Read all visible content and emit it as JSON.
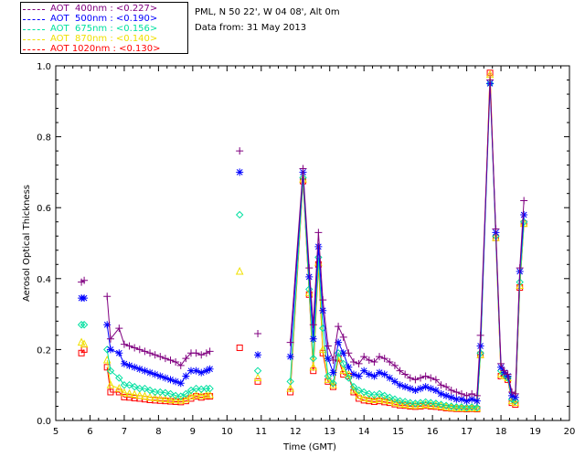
{
  "header": {
    "station": "PML, N 50 22', W 04 08', Alt 0m",
    "date": "Data from: 31 May 2013"
  },
  "chart_data": {
    "type": "scatter",
    "xlabel": "Time (GMT)",
    "ylabel": "Aerosol Optical Thickness",
    "xlim": [
      5,
      20
    ],
    "ylim": [
      0.0,
      1.0
    ],
    "xticks": [
      "5",
      "6",
      "7",
      "8",
      "9",
      "10",
      "11",
      "12",
      "13",
      "14",
      "15",
      "16",
      "17",
      "18",
      "19",
      "20"
    ],
    "yticks": [
      "0.0",
      "0.2",
      "0.4",
      "0.6",
      "0.8",
      "1.0"
    ],
    "legend_position": "top-left",
    "x": [
      5.75,
      5.83,
      6.5,
      6.6,
      6.85,
      7.0,
      7.15,
      7.3,
      7.45,
      7.6,
      7.75,
      7.9,
      8.05,
      8.2,
      8.35,
      8.5,
      8.65,
      8.8,
      8.95,
      9.1,
      9.25,
      9.4,
      9.5,
      10.37,
      10.9,
      11.85,
      12.22,
      12.4,
      12.52,
      12.67,
      12.8,
      12.95,
      13.1,
      13.25,
      13.4,
      13.55,
      13.7,
      13.85,
      14.0,
      14.15,
      14.3,
      14.45,
      14.6,
      14.75,
      14.9,
      15.05,
      15.2,
      15.35,
      15.5,
      15.65,
      15.8,
      15.95,
      16.1,
      16.25,
      16.4,
      16.55,
      16.7,
      16.85,
      17.0,
      17.15,
      17.3,
      17.4,
      17.68,
      17.85,
      18.0,
      18.1,
      18.2,
      18.32,
      18.42,
      18.55,
      18.67
    ],
    "series": [
      {
        "name": "AOT  400nm : <0.227>",
        "color": "#800080",
        "marker": "plus",
        "values": [
          0.39,
          0.395,
          0.35,
          0.23,
          0.26,
          0.215,
          0.21,
          0.205,
          0.2,
          0.195,
          0.19,
          0.185,
          0.18,
          0.175,
          0.17,
          0.165,
          0.155,
          0.175,
          0.19,
          0.19,
          0.185,
          0.19,
          0.195,
          0.76,
          0.245,
          0.22,
          0.71,
          0.43,
          0.27,
          0.53,
          0.34,
          0.21,
          0.17,
          0.265,
          0.235,
          0.19,
          0.165,
          0.16,
          0.18,
          0.17,
          0.165,
          0.18,
          0.175,
          0.165,
          0.155,
          0.14,
          0.13,
          0.12,
          0.115,
          0.12,
          0.125,
          0.12,
          0.115,
          0.1,
          0.095,
          0.085,
          0.08,
          0.075,
          0.07,
          0.075,
          0.07,
          0.24,
          0.96,
          0.54,
          0.16,
          0.14,
          0.13,
          0.08,
          0.075,
          0.43,
          0.62
        ]
      },
      {
        "name": "AOT  500nm : <0.190>",
        "color": "#0000ff",
        "marker": "asterisk",
        "values": [
          0.345,
          0.345,
          0.27,
          0.2,
          0.19,
          0.16,
          0.155,
          0.15,
          0.145,
          0.14,
          0.135,
          0.13,
          0.125,
          0.12,
          0.115,
          0.11,
          0.105,
          0.125,
          0.14,
          0.14,
          0.135,
          0.14,
          0.145,
          0.7,
          0.185,
          0.18,
          0.7,
          0.405,
          0.23,
          0.49,
          0.31,
          0.175,
          0.135,
          0.22,
          0.19,
          0.15,
          0.13,
          0.125,
          0.14,
          0.13,
          0.125,
          0.135,
          0.13,
          0.12,
          0.11,
          0.1,
          0.095,
          0.09,
          0.085,
          0.09,
          0.095,
          0.09,
          0.085,
          0.075,
          0.07,
          0.065,
          0.06,
          0.06,
          0.055,
          0.06,
          0.055,
          0.21,
          0.95,
          0.53,
          0.15,
          0.135,
          0.125,
          0.07,
          0.065,
          0.42,
          0.58
        ]
      },
      {
        "name": "AOT  675nm : <0.156>",
        "color": "#00e0a0",
        "marker": "diamond",
        "values": [
          0.27,
          0.27,
          0.2,
          0.14,
          0.12,
          0.1,
          0.1,
          0.095,
          0.09,
          0.09,
          0.085,
          0.08,
          0.08,
          0.078,
          0.075,
          0.07,
          0.068,
          0.075,
          0.085,
          0.09,
          0.088,
          0.09,
          0.09,
          0.58,
          0.14,
          0.11,
          0.685,
          0.37,
          0.175,
          0.46,
          0.26,
          0.125,
          0.105,
          0.19,
          0.16,
          0.12,
          0.095,
          0.085,
          0.08,
          0.075,
          0.072,
          0.075,
          0.07,
          0.065,
          0.06,
          0.055,
          0.053,
          0.05,
          0.048,
          0.05,
          0.052,
          0.05,
          0.048,
          0.045,
          0.042,
          0.04,
          0.038,
          0.038,
          0.036,
          0.038,
          0.036,
          0.19,
          0.95,
          0.52,
          0.14,
          0.13,
          0.12,
          0.06,
          0.055,
          0.39,
          0.56
        ]
      },
      {
        "name": "AOT  870nm : <0.140>",
        "color": "#f0e000",
        "marker": "triangle",
        "values": [
          0.22,
          0.215,
          0.17,
          0.1,
          0.09,
          0.078,
          0.075,
          0.073,
          0.07,
          0.068,
          0.065,
          0.063,
          0.062,
          0.06,
          0.058,
          0.057,
          0.056,
          0.06,
          0.068,
          0.072,
          0.07,
          0.072,
          0.072,
          0.42,
          0.12,
          0.09,
          0.68,
          0.36,
          0.15,
          0.445,
          0.2,
          0.115,
          0.1,
          0.18,
          0.14,
          0.13,
          0.085,
          0.07,
          0.063,
          0.06,
          0.058,
          0.06,
          0.057,
          0.055,
          0.05,
          0.047,
          0.045,
          0.043,
          0.042,
          0.043,
          0.045,
          0.043,
          0.042,
          0.04,
          0.038,
          0.036,
          0.035,
          0.035,
          0.034,
          0.035,
          0.034,
          0.185,
          0.975,
          0.515,
          0.13,
          0.125,
          0.12,
          0.055,
          0.05,
          0.38,
          0.555
        ]
      },
      {
        "name": "AOT 1020nm : <0.130>",
        "color": "#ff0000",
        "marker": "square",
        "values": [
          0.19,
          0.2,
          0.15,
          0.08,
          0.08,
          0.066,
          0.065,
          0.063,
          0.062,
          0.06,
          0.058,
          0.057,
          0.056,
          0.055,
          0.054,
          0.053,
          0.052,
          0.055,
          0.062,
          0.068,
          0.065,
          0.068,
          0.068,
          0.205,
          0.11,
          0.08,
          0.675,
          0.355,
          0.14,
          0.44,
          0.19,
          0.11,
          0.095,
          0.175,
          0.13,
          0.125,
          0.08,
          0.062,
          0.057,
          0.055,
          0.053,
          0.055,
          0.052,
          0.05,
          0.046,
          0.043,
          0.042,
          0.04,
          0.039,
          0.04,
          0.042,
          0.04,
          0.039,
          0.037,
          0.035,
          0.034,
          0.033,
          0.033,
          0.032,
          0.033,
          0.032,
          0.185,
          0.98,
          0.515,
          0.125,
          0.125,
          0.115,
          0.05,
          0.045,
          0.375,
          0.555
        ]
      }
    ],
    "gaps_after_index": [
      1,
      22,
      23,
      24
    ]
  }
}
